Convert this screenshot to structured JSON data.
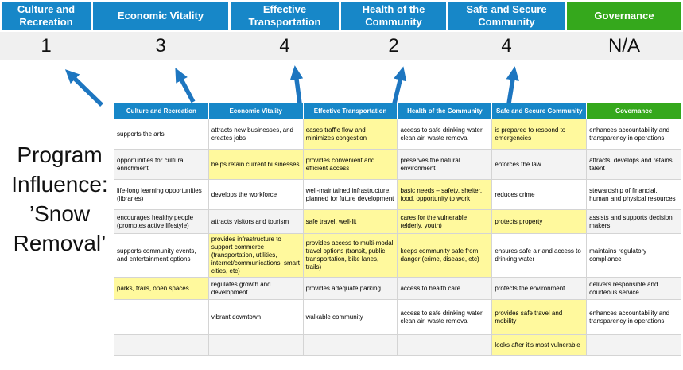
{
  "colors": {
    "pillar_blue": "#1787C8",
    "governance_green": "#35A81C",
    "highlight_yellow": "#FFF99D",
    "arrow_blue": "#1D76C0",
    "score_band_gray": "#F0F0F0"
  },
  "program": {
    "lines": [
      "Program",
      "Influence:",
      "’Snow",
      "Removal’"
    ]
  },
  "scorecard": {
    "pillars": [
      {
        "label": "Culture and Recreation",
        "score": "1",
        "accent": "blue"
      },
      {
        "label": "Economic Vitality",
        "score": "3",
        "accent": "blue"
      },
      {
        "label": "Effective Transportation",
        "score": "4",
        "accent": "blue"
      },
      {
        "label": "Health of the Community",
        "score": "2",
        "accent": "blue"
      },
      {
        "label": "Safe and Secure Community",
        "score": "4",
        "accent": "blue"
      },
      {
        "label": "Governance",
        "score": "N/A",
        "accent": "green"
      }
    ]
  },
  "matrix": {
    "columns": [
      {
        "label": "Culture and Recreation",
        "accent": "blue"
      },
      {
        "label": "Economic Vitality",
        "accent": "blue"
      },
      {
        "label": "Effective Transportation",
        "accent": "blue"
      },
      {
        "label": "Health of the Community",
        "accent": "blue"
      },
      {
        "label": "Safe and Secure Community",
        "accent": "blue"
      },
      {
        "label": "Governance",
        "accent": "green"
      }
    ],
    "rows": [
      [
        {
          "text": "supports the arts",
          "highlighted": false
        },
        {
          "text": "attracts new businesses, and creates jobs",
          "highlighted": false
        },
        {
          "text": "eases traffic flow and minimizes congestion",
          "highlighted": true
        },
        {
          "text": "access to safe drinking water, clean air, waste removal",
          "highlighted": false
        },
        {
          "text": "is prepared to respond to emergencies",
          "highlighted": true
        },
        {
          "text": "enhances accountability and transparency in operations",
          "highlighted": false
        }
      ],
      [
        {
          "text": "opportunities for cultural enrichment",
          "highlighted": false
        },
        {
          "text": "helps retain current businesses",
          "highlighted": true
        },
        {
          "text": "provides convenient and efficient access",
          "highlighted": true
        },
        {
          "text": "preserves the natural environment",
          "highlighted": false
        },
        {
          "text": "enforces the law",
          "highlighted": false
        },
        {
          "text": "attracts, develops and retains talent",
          "highlighted": false
        }
      ],
      [
        {
          "text": "life-long learning opportunities (libraries)",
          "highlighted": false
        },
        {
          "text": "develops the workforce",
          "highlighted": false
        },
        {
          "text": "well-maintained infrastructure, planned for future development",
          "highlighted": false
        },
        {
          "text": "basic needs – safety, shelter, food, opportunity to work",
          "highlighted": true
        },
        {
          "text": "reduces crime",
          "highlighted": false
        },
        {
          "text": "stewardship of financial, human and physical resources",
          "highlighted": false
        }
      ],
      [
        {
          "text": "encourages healthy people (promotes active lifestyle)",
          "highlighted": false
        },
        {
          "text": "attracts visitors and tourism",
          "highlighted": false
        },
        {
          "text": "safe travel, well-lit",
          "highlighted": true
        },
        {
          "text": "cares for the vulnerable (elderly, youth)",
          "highlighted": true
        },
        {
          "text": "protects property",
          "highlighted": true
        },
        {
          "text": "assists and supports decision makers",
          "highlighted": false
        }
      ],
      [
        {
          "text": "supports community events, and entertainment options",
          "highlighted": false
        },
        {
          "text": "provides infrastructure to support commerce (transportation, utilities, internet/communications, smart cities, etc)",
          "highlighted": true
        },
        {
          "text": "provides access to multi-modal travel options (transit, public transportation, bike lanes, trails)",
          "highlighted": true
        },
        {
          "text": "keeps community safe from danger (crime, disease, etc)",
          "highlighted": true
        },
        {
          "text": "ensures safe air and access to drinking water",
          "highlighted": false
        },
        {
          "text": "maintains regulatory compliance",
          "highlighted": false
        }
      ],
      [
        {
          "text": "parks, trails, open spaces",
          "highlighted": true
        },
        {
          "text": "regulates growth and development",
          "highlighted": false
        },
        {
          "text": "provides adequate parking",
          "highlighted": false
        },
        {
          "text": "access to health care",
          "highlighted": false
        },
        {
          "text": "protects the environment",
          "highlighted": false
        },
        {
          "text": "delivers responsible and courteous service",
          "highlighted": false
        }
      ],
      [
        {
          "text": "",
          "highlighted": false
        },
        {
          "text": "vibrant downtown",
          "highlighted": false
        },
        {
          "text": "walkable community",
          "highlighted": false
        },
        {
          "text": "access to safe drinking water, clean air, waste removal",
          "highlighted": false
        },
        {
          "text": "provides safe travel and mobility",
          "highlighted": true
        },
        {
          "text": "enhances accountability and transparency in operations",
          "highlighted": false
        }
      ],
      [
        {
          "text": "",
          "highlighted": false
        },
        {
          "text": "",
          "highlighted": false
        },
        {
          "text": "",
          "highlighted": false
        },
        {
          "text": "",
          "highlighted": false
        },
        {
          "text": "looks after it's most vulnerable",
          "highlighted": true
        },
        {
          "text": "",
          "highlighted": false
        }
      ]
    ]
  }
}
